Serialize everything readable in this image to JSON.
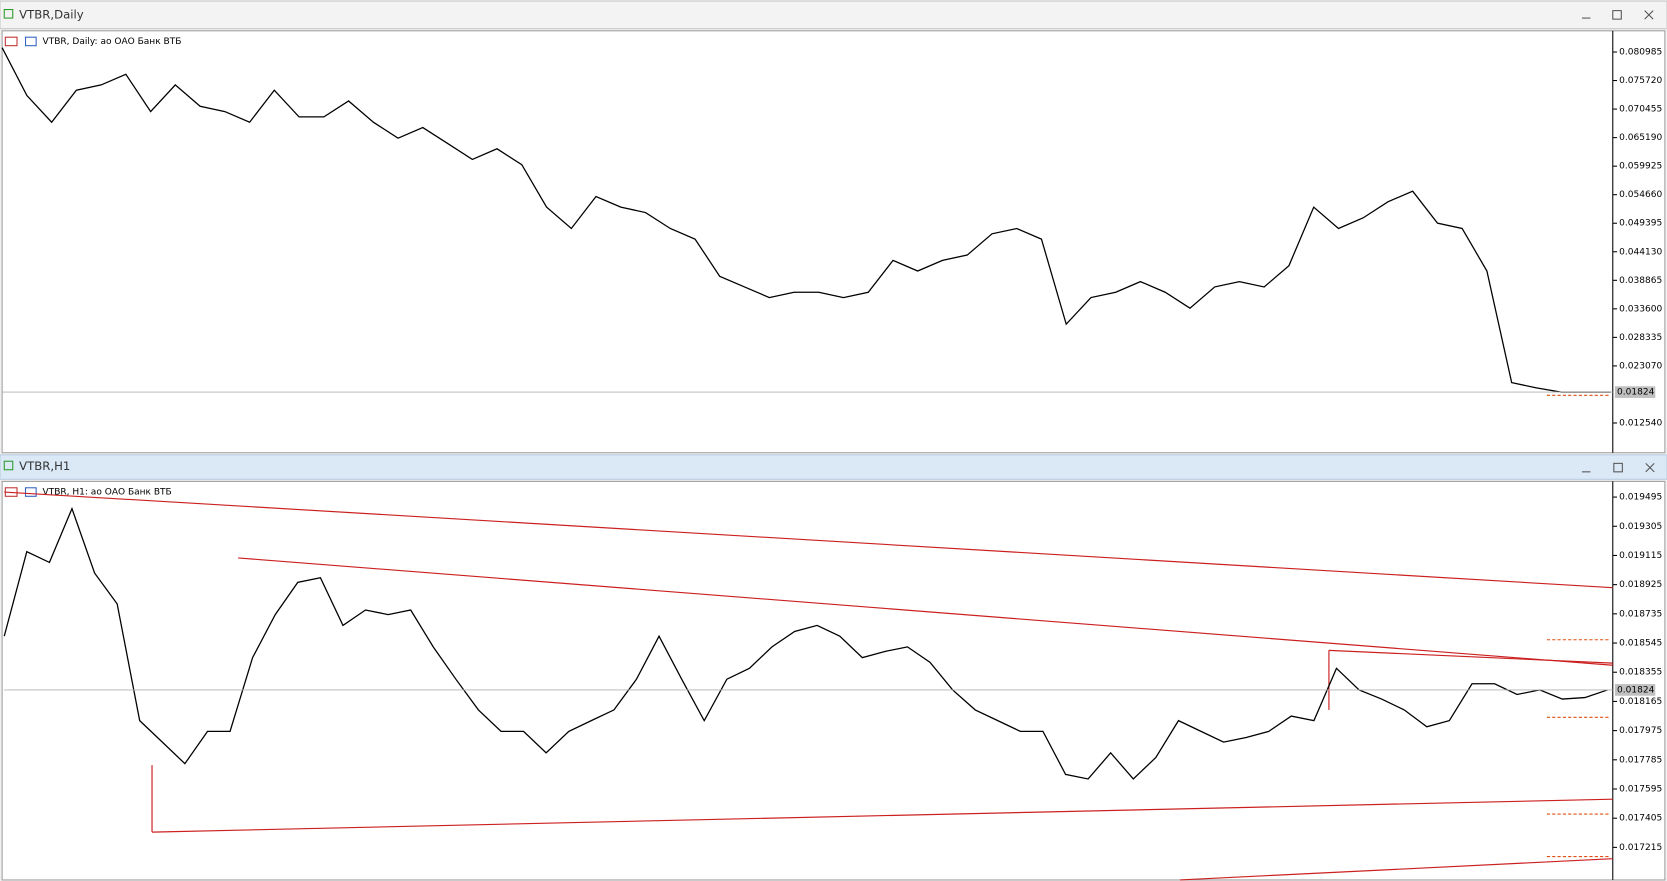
{
  "windows": [
    {
      "title": "VTBR,Daily",
      "chart_data": {
        "type": "line",
        "title": "VTBR, Daily:  ао ОАО Банк ВТБ",
        "color": "#000000",
        "values": [
          0.08177,
          0.07295,
          0.06804,
          0.07393,
          0.07491,
          0.07687,
          0.07,
          0.07491,
          0.07098,
          0.07,
          0.06804,
          0.07393,
          0.06902,
          0.06902,
          0.07196,
          0.06804,
          0.0651,
          0.06706,
          0.06412,
          0.06118,
          0.06314,
          0.0602,
          0.05236,
          0.04843,
          0.05432,
          0.05236,
          0.05137,
          0.04843,
          0.04647,
          0.03961,
          0.03765,
          0.03569,
          0.03667,
          0.03667,
          0.03569,
          0.03667,
          0.04255,
          0.04059,
          0.04255,
          0.04353,
          0.04745,
          0.04843,
          0.04647,
          0.03078,
          0.03569,
          0.03667,
          0.03863,
          0.03667,
          0.03373,
          0.03765,
          0.03863,
          0.03765,
          0.04157,
          0.05236,
          0.04843,
          0.05039,
          0.05334,
          0.0553,
          0.04941,
          0.04843,
          0.04059,
          0.02,
          0.01902,
          0.01823,
          0.01824,
          0.01824
        ],
        "ylim": [
          0.00725,
          0.0847
        ],
        "yticks": [
          0.080985,
          {
            "value": 0.07572,
            "label": "0.075720"
          },
          0.070455,
          {
            "value": 0.06519,
            "label": "0.065190"
          },
          0.059925,
          {
            "value": 0.05466,
            "label": "0.054660"
          },
          0.049395,
          {
            "value": 0.04413,
            "label": "0.044130"
          },
          0.038865,
          {
            "value": 0.0336,
            "label": "0.033600"
          },
          0.028335,
          {
            "value": 0.02307,
            "label": "0.023070"
          },
          {
            "value": 0.01254,
            "label": "0.012540"
          }
        ],
        "current_price": 0.01824
      }
    },
    {
      "title": "VTBR,H1",
      "chart_data": {
        "type": "line",
        "title": "VTBR, H1:  ао ОАО Банк ВТБ",
        "color": "#000000",
        "values": [
          0.01859,
          0.01914,
          0.01907,
          0.01942,
          0.019,
          0.0188,
          0.01804,
          0.0179,
          0.01776,
          0.01797,
          0.01797,
          0.01845,
          0.01873,
          0.01894,
          0.01897,
          0.01866,
          0.01876,
          0.01873,
          0.01876,
          0.01852,
          0.01831,
          0.01811,
          0.01797,
          0.01797,
          0.01783,
          0.01797,
          0.01804,
          0.01811,
          0.01831,
          0.01859,
          0.01831,
          0.01804,
          0.01831,
          0.01838,
          0.01852,
          0.01862,
          0.01866,
          0.01859,
          0.01845,
          0.01849,
          0.01852,
          0.01842,
          0.01824,
          0.01811,
          0.01804,
          0.01797,
          0.01797,
          0.01769,
          0.01766,
          0.01783,
          0.01766,
          0.0178,
          0.01804,
          0.01797,
          0.0179,
          0.01793,
          0.01797,
          0.01807,
          0.01804,
          0.01838,
          0.01824,
          0.01818,
          0.01811,
          0.018,
          0.01804,
          0.01828,
          0.01828,
          0.01821,
          0.01824,
          0.01818,
          0.01819,
          0.01824
        ],
        "ylim": [
          0.01701,
          0.01959
        ],
        "yticks": [
          0.019495,
          0.019305,
          0.019115,
          0.018925,
          0.018735,
          0.018545,
          0.018355,
          0.018165,
          0.017975,
          0.017785,
          0.017595,
          0.017405,
          0.017215
        ],
        "current_price": 0.01824
      }
    }
  ]
}
